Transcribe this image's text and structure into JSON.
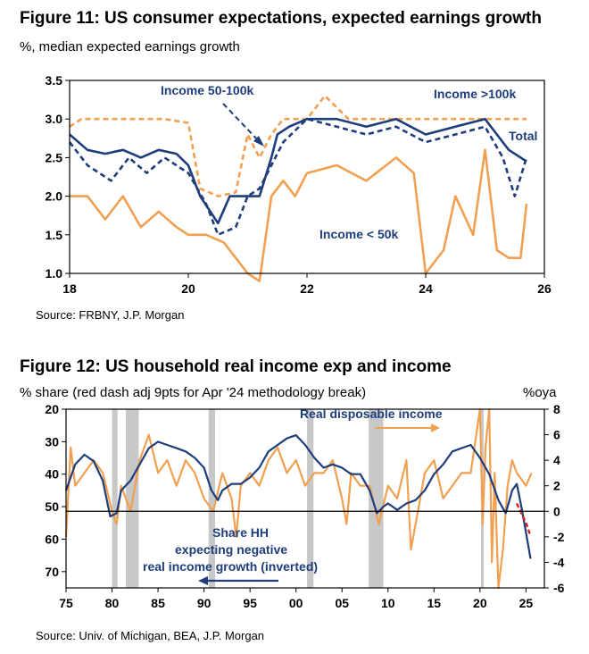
{
  "figure11": {
    "title": "Figure 11: US consumer expectations, expected earnings growth",
    "subtitle": "%, median expected earnings growth",
    "source": "Source: FRBNY, J.P. Morgan"
  },
  "figure12": {
    "title": "Figure 12: US household real income exp and income",
    "subtitle": "% share (red dash adj 9pts for Apr '24 methodology break)",
    "right_axis_unit": "%oya",
    "source": "Source: Univ. of Michigan, BEA, J.P. Morgan"
  },
  "colors": {
    "navy": "#1f3d7a",
    "orange": "#f0a050",
    "red": "#e01b1b",
    "recession": "#c8c8c8"
  },
  "chart_data": [
    {
      "type": "line",
      "title": "Figure 11: US consumer expectations, expected earnings growth",
      "ylabel": "%, median expected earnings growth",
      "xlim": [
        18,
        26
      ],
      "ylim": [
        1.0,
        3.5
      ],
      "x_ticks": [
        "18",
        "20",
        "22",
        "24",
        "26"
      ],
      "y_ticks": [
        "1.0",
        "1.5",
        "2.0",
        "2.5",
        "3.0",
        "3.5"
      ],
      "grid": false,
      "annotations": [
        {
          "text": "Income 50-100k",
          "series": "Income 50-100k"
        },
        {
          "text": "Income >100k",
          "series": "Income >100k"
        },
        {
          "text": "Total",
          "series": "Total"
        },
        {
          "text": "Income < 50k",
          "series": "Income < 50k"
        }
      ],
      "series": [
        {
          "name": "Total",
          "style": "solid",
          "color": "#1f3d7a",
          "x": [
            18.0,
            18.3,
            18.6,
            18.9,
            19.2,
            19.5,
            19.8,
            20.0,
            20.2,
            20.5,
            20.7,
            21.0,
            21.2,
            21.4,
            21.5,
            21.7,
            22.0,
            22.5,
            23.0,
            23.5,
            24.0,
            24.5,
            25.0,
            25.2,
            25.4,
            25.6,
            25.7
          ],
          "values": [
            2.8,
            2.6,
            2.55,
            2.6,
            2.5,
            2.6,
            2.55,
            2.4,
            2.0,
            1.65,
            2.0,
            2.0,
            2.0,
            2.5,
            2.8,
            2.9,
            3.0,
            3.0,
            2.9,
            3.0,
            2.8,
            2.9,
            3.0,
            2.8,
            2.6,
            2.5,
            2.45
          ]
        },
        {
          "name": "Income >100k",
          "style": "dashed",
          "color": "#f0a050",
          "x": [
            18.0,
            18.2,
            19.0,
            19.6,
            20.0,
            20.2,
            20.5,
            20.8,
            21.0,
            21.2,
            21.4,
            21.6,
            21.8,
            22.0,
            22.3,
            22.7,
            23.0,
            23.5,
            24.0,
            24.5,
            25.0,
            25.3,
            25.5,
            25.7
          ],
          "values": [
            2.9,
            3.0,
            3.0,
            3.0,
            2.95,
            2.1,
            2.0,
            2.05,
            2.8,
            2.5,
            2.8,
            3.0,
            3.0,
            3.0,
            3.3,
            3.0,
            3.0,
            3.0,
            3.0,
            3.0,
            3.0,
            3.0,
            3.0,
            3.0
          ]
        },
        {
          "name": "Income 50-100k",
          "style": "dashed",
          "color": "#1f3d7a",
          "x": [
            18.0,
            18.3,
            18.7,
            19.0,
            19.3,
            19.6,
            20.0,
            20.3,
            20.5,
            20.8,
            21.0,
            21.2,
            21.4,
            21.6,
            22.0,
            22.5,
            23.0,
            23.5,
            24.0,
            24.5,
            25.0,
            25.3,
            25.5,
            25.7
          ],
          "values": [
            2.7,
            2.4,
            2.2,
            2.5,
            2.3,
            2.5,
            2.3,
            1.9,
            1.5,
            1.6,
            2.0,
            2.1,
            2.4,
            2.7,
            3.0,
            2.9,
            2.8,
            2.9,
            2.7,
            2.8,
            2.9,
            2.5,
            2.0,
            2.5
          ]
        },
        {
          "name": "Income < 50k",
          "style": "solid",
          "color": "#f0a050",
          "x": [
            18.0,
            18.3,
            18.6,
            18.9,
            19.2,
            19.5,
            19.8,
            20.0,
            20.3,
            20.6,
            20.8,
            21.0,
            21.2,
            21.4,
            21.6,
            21.8,
            22.0,
            22.5,
            23.0,
            23.5,
            23.8,
            24.0,
            24.3,
            24.5,
            24.8,
            25.0,
            25.2,
            25.4,
            25.6,
            25.7
          ],
          "values": [
            2.0,
            2.0,
            1.7,
            2.0,
            1.6,
            1.8,
            1.6,
            1.5,
            1.5,
            1.4,
            1.2,
            1.0,
            0.9,
            2.0,
            2.2,
            2.0,
            2.3,
            2.4,
            2.2,
            2.5,
            2.3,
            1.0,
            1.3,
            2.0,
            1.5,
            2.6,
            1.3,
            1.2,
            1.2,
            1.9
          ]
        }
      ]
    },
    {
      "type": "line",
      "title": "Figure 12: US household real income exp and income",
      "ylabel": "% share (red dash adj 9pts for Apr '24 methodology break)",
      "y2label": "%oya",
      "xlim": [
        75,
        27
      ],
      "x_domain": [
        1975,
        2027
      ],
      "ylim": [
        75,
        20
      ],
      "y_inverted": true,
      "y2lim": [
        -6,
        8
      ],
      "x_ticks": [
        "75",
        "80",
        "85",
        "90",
        "95",
        "00",
        "05",
        "10",
        "15",
        "20",
        "25"
      ],
      "y_ticks": [
        "20",
        "30",
        "40",
        "50",
        "60",
        "70"
      ],
      "y2_ticks": [
        "8",
        "6",
        "4",
        "2",
        "0",
        "-2",
        "-4",
        "-6"
      ],
      "grid": false,
      "recession_bands": [
        [
          1980.0,
          1980.6
        ],
        [
          1981.5,
          1982.9
        ],
        [
          1990.5,
          1991.2
        ],
        [
          2001.2,
          2001.9
        ],
        [
          2007.9,
          2009.5
        ],
        [
          2020.1,
          2020.4
        ]
      ],
      "annotations": [
        {
          "text": "Real disposable income",
          "arrow": "right"
        },
        {
          "text": "Share HH",
          "arrow": "left"
        },
        {
          "text": "expecting negative",
          "arrow": "none"
        },
        {
          "text": "real income growth (inverted)",
          "arrow": "none"
        }
      ],
      "series": [
        {
          "name": "Share HH expecting negative real income growth (inverted)",
          "axis": "left",
          "color": "#1f3d7a",
          "x": [
            1975,
            1976,
            1977,
            1978,
            1979,
            1979.8,
            1980.5,
            1981,
            1982,
            1983,
            1984,
            1985,
            1986,
            1987,
            1988,
            1989,
            1990,
            1990.8,
            1991.5,
            1992,
            1993,
            1994,
            1995,
            1996,
            1997,
            1998,
            1999,
            2000,
            2001,
            2002,
            2003,
            2004,
            2005,
            2006,
            2007,
            2008,
            2008.8,
            2009.5,
            2010,
            2011,
            2012,
            2013,
            2014,
            2015,
            2016,
            2017,
            2018,
            2019,
            2020,
            2021,
            2022,
            2022.8,
            2023.5,
            2024,
            2024.5,
            2025,
            2025.5
          ],
          "values": [
            45,
            37,
            34,
            36,
            42,
            53,
            52,
            45,
            42,
            37,
            32,
            30,
            31,
            32,
            33,
            35,
            38,
            45,
            48,
            45,
            43,
            43,
            41,
            38,
            33,
            31,
            29,
            28,
            31,
            35,
            38,
            37,
            38,
            40,
            40,
            45,
            52,
            50,
            49,
            51,
            49,
            48,
            45,
            40,
            37,
            33,
            32,
            31,
            35,
            40,
            48,
            52,
            45,
            43,
            50,
            58,
            66
          ]
        },
        {
          "name": "Share HH (red dash adj)",
          "axis": "left",
          "style": "dashed",
          "color": "#e01b1b",
          "x": [
            2024.0,
            2024.5,
            2025.0,
            2025.5
          ],
          "values": [
            49,
            52,
            55,
            59
          ]
        },
        {
          "name": "Real disposable income",
          "axis": "right",
          "color": "#f0a050",
          "x": [
            1975,
            1975.5,
            1976,
            1977,
            1978,
            1979,
            1980,
            1980.5,
            1981,
            1982,
            1983,
            1984,
            1985,
            1986,
            1987,
            1988,
            1989,
            1990,
            1991,
            1992,
            1993,
            1993.5,
            1994,
            1995,
            1996,
            1997,
            1998,
            1999,
            2000,
            2001,
            2002,
            2003,
            2004,
            2005,
            2005.5,
            2006,
            2007,
            2008,
            2009,
            2010,
            2011,
            2012,
            2012.5,
            2013,
            2014,
            2015,
            2016,
            2017,
            2018,
            2019,
            2020,
            2020.3,
            2020.6,
            2021,
            2021.3,
            2021.6,
            2022,
            2022.5,
            2023,
            2023.5,
            2024,
            2025,
            2025.6
          ],
          "values": [
            -2,
            5,
            2,
            3,
            4,
            3,
            0,
            -1,
            2,
            0,
            4,
            6,
            3,
            4,
            2,
            4,
            3,
            1,
            0,
            3,
            1,
            -2,
            2,
            3,
            2,
            4,
            5,
            3,
            4,
            2,
            3,
            3,
            4,
            1,
            -1,
            3,
            2,
            2,
            -1,
            2,
            1,
            4,
            -3,
            -1,
            3,
            4,
            1,
            2,
            3,
            3,
            8,
            -1,
            5,
            8,
            -4,
            3,
            -6,
            -3,
            2,
            4,
            3,
            2,
            3
          ]
        }
      ]
    }
  ]
}
